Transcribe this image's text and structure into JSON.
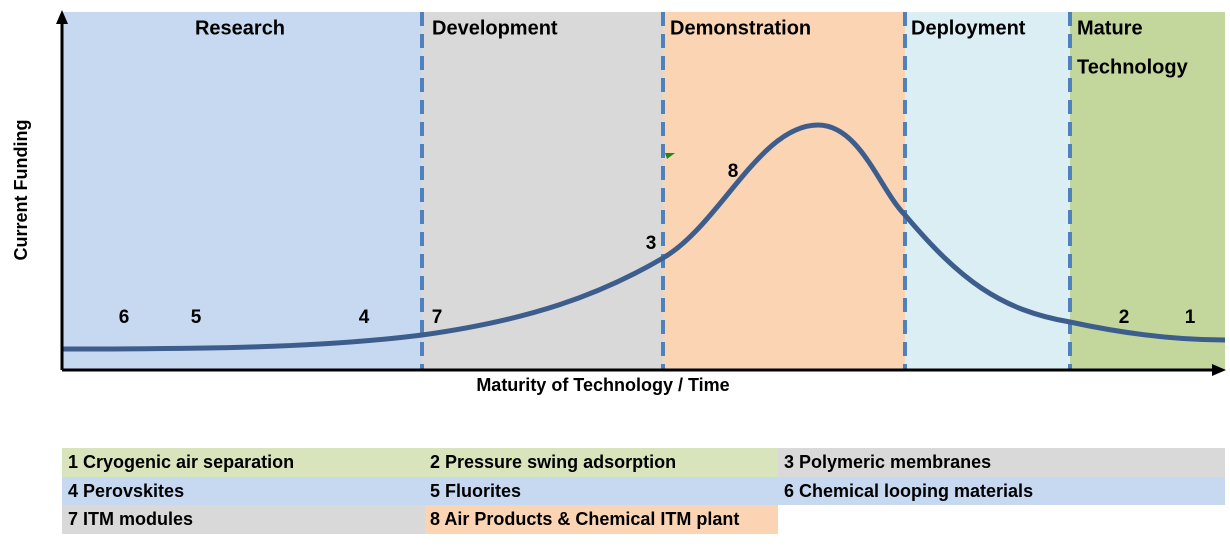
{
  "stages": [
    {
      "label": "Research"
    },
    {
      "label": "Development"
    },
    {
      "label": "Demonstration"
    },
    {
      "label": "Deployment"
    },
    {
      "label": "Mature",
      "label2": "Technology"
    }
  ],
  "axes": {
    "y_label": "Current Funding",
    "x_label": "Maturity of Technology / Time"
  },
  "markers": [
    "6",
    "5",
    "4",
    "7",
    "3",
    "8",
    "2",
    "1"
  ],
  "legend": [
    [
      "1 Cryogenic air separation",
      "2 Pressure swing adsorption",
      "3 Polymeric membranes"
    ],
    [
      "4 Perovskites",
      "5 Fluorites",
      "6 Chemical looping materials"
    ],
    [
      "7 ITM modules",
      "8 Air Products & Chemical ITM plant"
    ]
  ]
}
